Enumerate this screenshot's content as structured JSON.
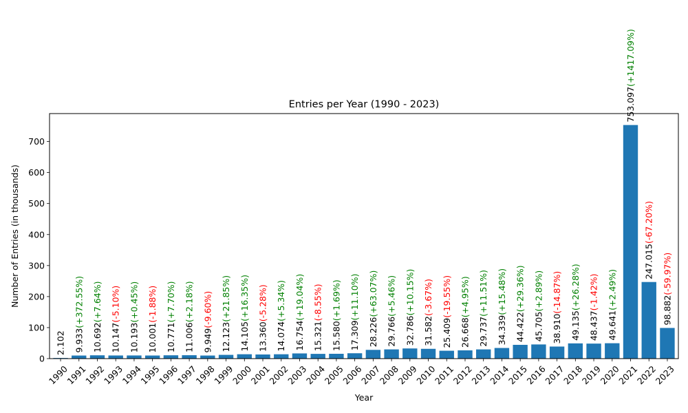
{
  "chart_data": {
    "type": "bar",
    "title": "Entries per Year (1990 - 2023)",
    "xlabel": "Year",
    "ylabel": "Number of Entries (in thousands)",
    "ylim": [
      0,
      790
    ],
    "yticks": [
      0,
      100,
      200,
      300,
      400,
      500,
      600,
      700
    ],
    "bar_color": "#1f77b4",
    "increase_color": "#008000",
    "decrease_color": "#ff0000",
    "grid": false,
    "categories": [
      "1990",
      "1991",
      "1992",
      "1993",
      "1994",
      "1995",
      "1996",
      "1997",
      "1998",
      "1999",
      "2000",
      "2001",
      "2002",
      "2003",
      "2004",
      "2005",
      "2006",
      "2007",
      "2008",
      "2009",
      "2010",
      "2011",
      "2012",
      "2013",
      "2014",
      "2015",
      "2016",
      "2017",
      "2018",
      "2019",
      "2020",
      "2021",
      "2022",
      "2023"
    ],
    "values": [
      2.102,
      9.933,
      10.692,
      10.147,
      10.193,
      10.001,
      10.771,
      11.006,
      9.949,
      12.123,
      14.105,
      13.36,
      14.074,
      16.754,
      15.321,
      15.58,
      17.309,
      28.226,
      29.766,
      32.786,
      31.582,
      25.409,
      26.668,
      29.737,
      34.339,
      44.422,
      45.705,
      38.91,
      49.135,
      48.437,
      49.641,
      753.097,
      247.015,
      98.882
    ],
    "value_labels": [
      "2.102",
      "9.933",
      "10.692",
      "10.147",
      "10.193",
      "10.001",
      "10.771",
      "11.006",
      "9.949",
      "12.123",
      "14.105",
      "13.360",
      "14.074",
      "16.754",
      "15.321",
      "15.580",
      "17.309",
      "28.226",
      "29.766",
      "32.786",
      "31.582",
      "25.409",
      "26.668",
      "29.737",
      "34.339",
      "44.422",
      "45.705",
      "38.910",
      "49.135",
      "48.437",
      "49.641",
      "753.097",
      "247.015",
      "98.882"
    ],
    "change_labels": [
      "",
      "(+372.55%)",
      "(+7.64%)",
      "(-5.10%)",
      "(+0.45%)",
      "(-1.88%)",
      "(+7.70%)",
      "(+2.18%)",
      "(-9.60%)",
      "(+21.85%)",
      "(+16.35%)",
      "(-5.28%)",
      "(+5.34%)",
      "(+19.04%)",
      "(-8.55%)",
      "(+1.69%)",
      "(+11.10%)",
      "(+63.07%)",
      "(+5.46%)",
      "(+10.15%)",
      "(-3.67%)",
      "(-19.55%)",
      "(+4.95%)",
      "(+11.51%)",
      "(+15.48%)",
      "(+29.36%)",
      "(+2.89%)",
      "(-14.87%)",
      "(+26.28%)",
      "(-1.42%)",
      "(+2.49%)",
      "(+1417.09%)",
      "(-67.20%)",
      "(-59.97%)"
    ]
  }
}
